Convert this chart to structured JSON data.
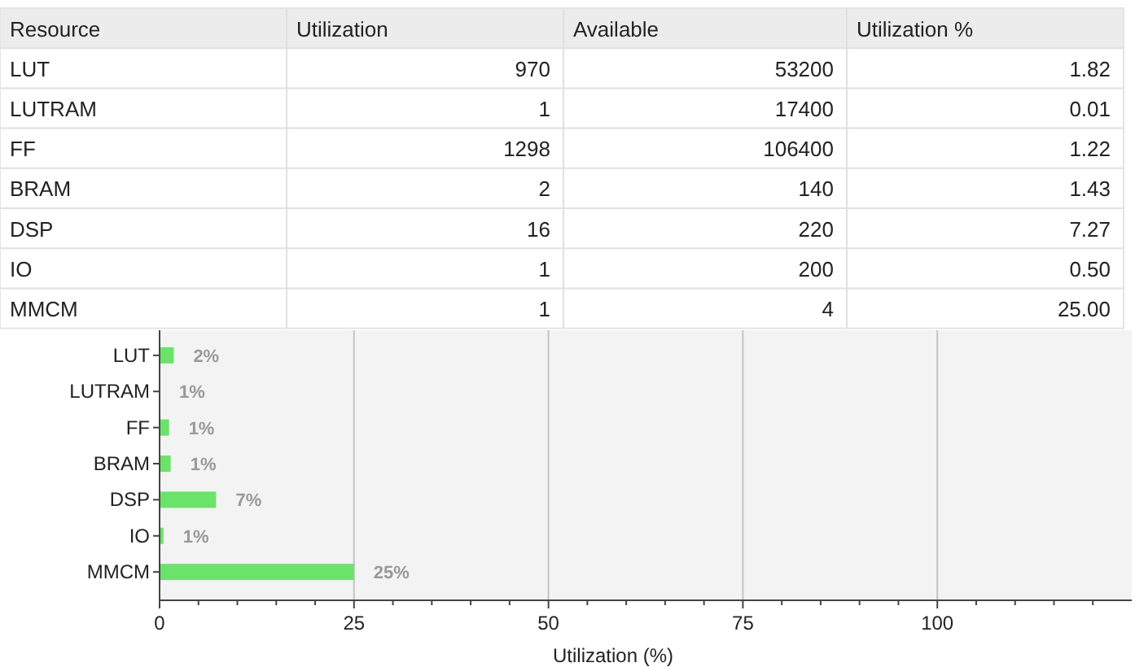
{
  "chart_data": [
    {
      "type": "other",
      "xlabel": "Resource",
      "categories": [
        "LUT",
        "LUTRAM",
        "FF",
        "BRAM",
        "DSP",
        "IO",
        "MMCM"
      ],
      "data_labels": true,
      "series": [
        {
          "name": "Utilization",
          "values": [
            970,
            1,
            1298,
            2,
            16,
            1,
            1
          ]
        },
        {
          "name": "Available",
          "values": [
            53200,
            17400,
            106400,
            140,
            220,
            200,
            4
          ]
        },
        {
          "name": "Utilization %",
          "values": [
            1.82,
            0.01,
            1.22,
            1.43,
            7.27,
            0.5,
            25
          ],
          "value_labels": [
            "1.82",
            "0.01",
            "1.22",
            "1.43",
            "7.27",
            "0.50",
            "25.00"
          ]
        }
      ]
    },
    {
      "type": "bar",
      "orientation": "horizontal",
      "categories": [
        "LUT",
        "LUTRAM",
        "FF",
        "BRAM",
        "DSP",
        "IO",
        "MMCM"
      ],
      "values": [
        1.82,
        0.01,
        1.22,
        1.43,
        7.27,
        0.5,
        25
      ],
      "value_labels": [
        "2%",
        "1%",
        "1%",
        "1%",
        "7%",
        "1%",
        "25%"
      ],
      "color": "#6be36b",
      "xlabel": "Utilization (%)",
      "xlim": [
        0,
        125
      ],
      "xticks": [
        0,
        {
          "value": 5,
          "label": null
        },
        {
          "value": 10,
          "label": null
        },
        {
          "value": 15,
          "label": null
        },
        {
          "value": 20,
          "label": null
        },
        25,
        {
          "value": 30,
          "label": null
        },
        {
          "value": 35,
          "label": null
        },
        {
          "value": 40,
          "label": null
        },
        {
          "value": 45,
          "label": null
        },
        50,
        {
          "value": 55,
          "label": null
        },
        {
          "value": 60,
          "label": null
        },
        {
          "value": 65,
          "label": null
        },
        {
          "value": 70,
          "label": null
        },
        75,
        {
          "value": 80,
          "label": null
        },
        {
          "value": 85,
          "label": null
        },
        {
          "value": 90,
          "label": null
        },
        {
          "value": 95,
          "label": null
        },
        100,
        {
          "value": 105,
          "label": null
        },
        {
          "value": 110,
          "label": null
        },
        {
          "value": 115,
          "label": null
        },
        {
          "value": 120,
          "label": null
        }
      ],
      "grid": "x"
    }
  ]
}
